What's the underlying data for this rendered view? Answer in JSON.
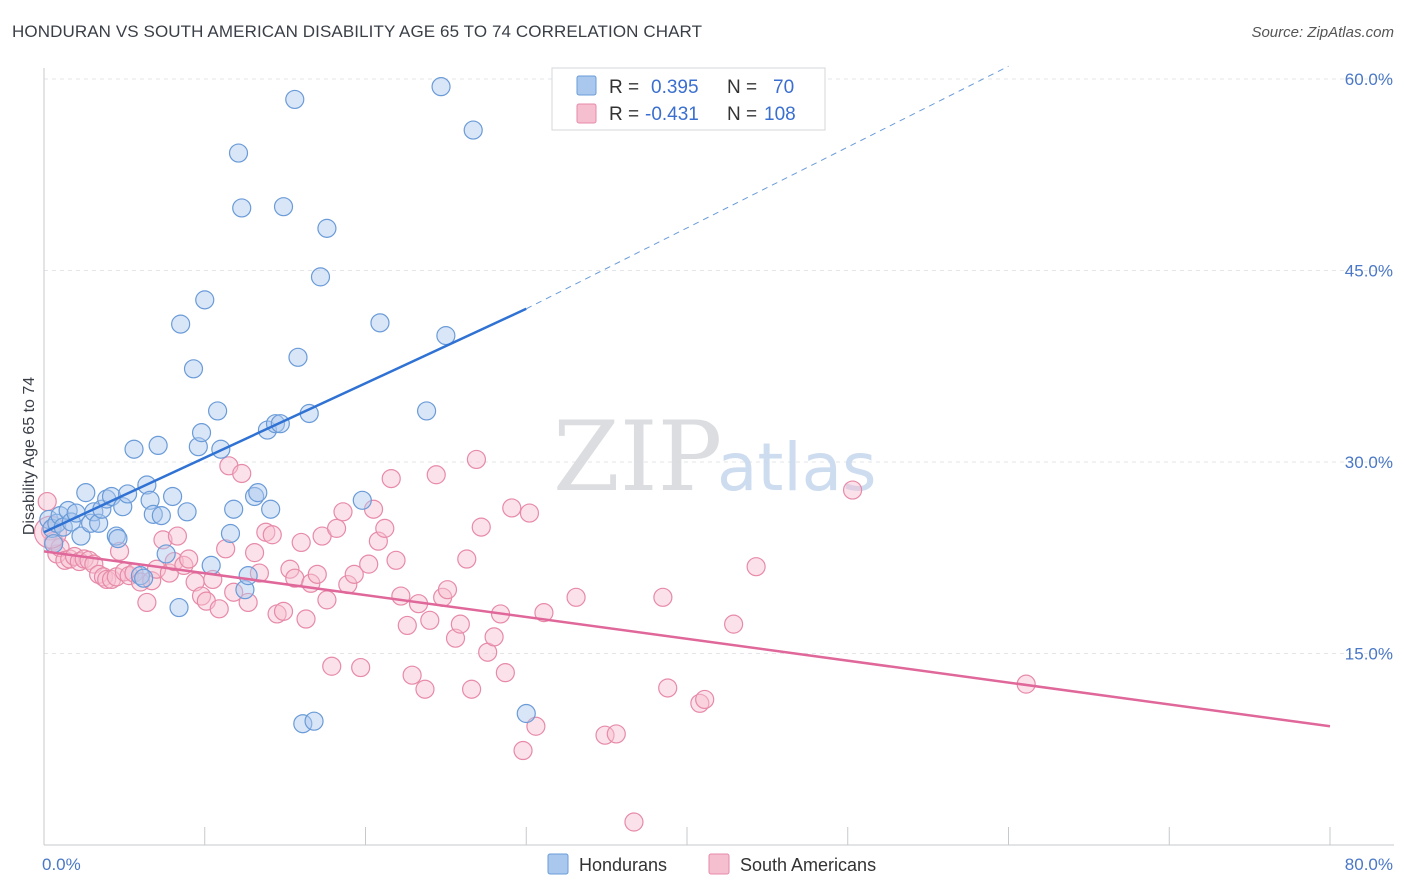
{
  "header": {
    "title": "HONDURAN VS SOUTH AMERICAN DISABILITY AGE 65 TO 74 CORRELATION CHART",
    "source": "Source: ZipAtlas.com"
  },
  "watermark": {
    "zip": "ZIP",
    "atlas": "atlas"
  },
  "legend": {
    "rows": [
      {
        "r_label": "R =",
        "r_value": "0.395",
        "n_label": "N =",
        "n_value": "70",
        "color": "#aac8ee",
        "stroke": "#6a9bd8"
      },
      {
        "r_label": "R =",
        "r_value": "-0.431",
        "n_label": "N =",
        "n_value": "108",
        "color": "#f6bfd0",
        "stroke": "#e78aa8"
      }
    ]
  },
  "bottom_legend": [
    {
      "label": "Hondurans",
      "color": "#aac8ee",
      "stroke": "#6a9bd8"
    },
    {
      "label": "South Americans",
      "color": "#f6bfd0",
      "stroke": "#e78aa8"
    }
  ],
  "chart_data": {
    "type": "scatter",
    "title": "HONDURAN VS SOUTH AMERICAN DISABILITY AGE 65 TO 74 CORRELATION CHART",
    "xlabel": "",
    "ylabel": "Disability Age 65 to 74",
    "xlim": [
      0,
      80
    ],
    "ylim": [
      0,
      60
    ],
    "x_tick_labels": [
      "0.0%",
      "80.0%"
    ],
    "y_ticks": [
      15,
      30,
      45,
      60
    ],
    "y_tick_labels": [
      "15.0%",
      "30.0%",
      "45.0%",
      "60.0%"
    ],
    "grid": true,
    "legend_position": "top-center",
    "colors": {
      "hondurans": "#5b8fd6",
      "south_americans": "#e0759b",
      "hondurans_line": "#2f72d4",
      "south_americans_line": "#e0679a"
    },
    "series": [
      {
        "name": "Hondurans",
        "trend": {
          "x": [
            0,
            30
          ],
          "y": [
            24.5,
            42.0
          ],
          "dashed_to": [
            60,
            61.0
          ]
        },
        "points": [
          [
            0.3,
            25.5
          ],
          [
            0.5,
            24.8
          ],
          [
            0.6,
            23.6
          ],
          [
            0.8,
            25.2
          ],
          [
            1.0,
            25.8
          ],
          [
            1.2,
            24.9
          ],
          [
            1.5,
            26.2
          ],
          [
            1.7,
            25.3
          ],
          [
            2.0,
            26.0
          ],
          [
            2.3,
            24.2
          ],
          [
            2.6,
            27.6
          ],
          [
            2.9,
            25.2
          ],
          [
            3.1,
            26.1
          ],
          [
            3.4,
            25.2
          ],
          [
            3.6,
            26.3
          ],
          [
            3.9,
            27.1
          ],
          [
            4.2,
            27.3
          ],
          [
            4.5,
            24.2
          ],
          [
            4.6,
            24.0
          ],
          [
            4.9,
            26.5
          ],
          [
            5.2,
            27.5
          ],
          [
            5.6,
            31.0
          ],
          [
            6.0,
            21.1
          ],
          [
            6.2,
            20.9
          ],
          [
            6.4,
            28.2
          ],
          [
            6.6,
            27.0
          ],
          [
            6.8,
            25.9
          ],
          [
            7.1,
            31.3
          ],
          [
            7.3,
            25.8
          ],
          [
            7.6,
            22.8
          ],
          [
            8.0,
            27.3
          ],
          [
            8.4,
            18.6
          ],
          [
            8.5,
            40.8
          ],
          [
            8.9,
            26.1
          ],
          [
            9.3,
            37.3
          ],
          [
            9.6,
            31.2
          ],
          [
            9.8,
            32.3
          ],
          [
            10.0,
            42.7
          ],
          [
            10.4,
            21.9
          ],
          [
            10.8,
            34.0
          ],
          [
            11.0,
            31.0
          ],
          [
            11.6,
            24.4
          ],
          [
            11.8,
            26.3
          ],
          [
            12.1,
            54.2
          ],
          [
            12.3,
            49.9
          ],
          [
            12.5,
            20.0
          ],
          [
            12.7,
            21.1
          ],
          [
            13.1,
            27.3
          ],
          [
            13.3,
            27.6
          ],
          [
            13.9,
            32.5
          ],
          [
            14.1,
            26.3
          ],
          [
            14.4,
            33.0
          ],
          [
            14.7,
            33.0
          ],
          [
            14.9,
            50.0
          ],
          [
            15.6,
            58.4
          ],
          [
            15.8,
            38.2
          ],
          [
            16.1,
            9.5
          ],
          [
            16.5,
            33.8
          ],
          [
            16.8,
            9.7
          ],
          [
            17.2,
            44.5
          ],
          [
            17.6,
            48.3
          ],
          [
            19.8,
            27.0
          ],
          [
            20.9,
            40.9
          ],
          [
            23.8,
            34.0
          ],
          [
            25.0,
            39.9
          ],
          [
            24.7,
            59.4
          ],
          [
            26.7,
            56.0
          ],
          [
            30.0,
            10.3
          ]
        ]
      },
      {
        "name": "South Americans",
        "trend": {
          "x": [
            0,
            80
          ],
          "y": [
            23.0,
            9.3
          ]
        },
        "points": [
          [
            0.2,
            26.9
          ],
          [
            0.4,
            24.6
          ],
          [
            0.6,
            23.8
          ],
          [
            0.8,
            22.8
          ],
          [
            1.0,
            23.3
          ],
          [
            1.3,
            22.3
          ],
          [
            1.6,
            22.4
          ],
          [
            1.9,
            22.6
          ],
          [
            2.2,
            22.2
          ],
          [
            2.5,
            22.4
          ],
          [
            2.8,
            22.3
          ],
          [
            3.1,
            22.0
          ],
          [
            3.4,
            21.2
          ],
          [
            3.7,
            21.0
          ],
          [
            3.9,
            20.8
          ],
          [
            4.2,
            20.8
          ],
          [
            4.5,
            21.0
          ],
          [
            4.7,
            23.0
          ],
          [
            5.0,
            21.4
          ],
          [
            5.3,
            21.1
          ],
          [
            5.6,
            21.3
          ],
          [
            6.0,
            20.6
          ],
          [
            6.4,
            19.0
          ],
          [
            6.7,
            20.7
          ],
          [
            7.0,
            21.6
          ],
          [
            7.4,
            23.9
          ],
          [
            7.8,
            21.3
          ],
          [
            8.1,
            22.2
          ],
          [
            8.3,
            24.2
          ],
          [
            8.7,
            21.9
          ],
          [
            9.0,
            22.4
          ],
          [
            9.4,
            20.6
          ],
          [
            9.8,
            19.5
          ],
          [
            10.1,
            19.1
          ],
          [
            10.5,
            20.8
          ],
          [
            10.9,
            18.5
          ],
          [
            11.3,
            23.2
          ],
          [
            11.5,
            29.7
          ],
          [
            11.8,
            19.8
          ],
          [
            12.3,
            29.1
          ],
          [
            12.7,
            19.0
          ],
          [
            13.1,
            22.9
          ],
          [
            13.4,
            21.3
          ],
          [
            13.8,
            24.5
          ],
          [
            14.2,
            24.3
          ],
          [
            14.5,
            18.1
          ],
          [
            14.9,
            18.3
          ],
          [
            15.3,
            21.6
          ],
          [
            15.6,
            20.9
          ],
          [
            16.0,
            23.7
          ],
          [
            16.3,
            17.7
          ],
          [
            16.6,
            20.5
          ],
          [
            17.0,
            21.2
          ],
          [
            17.3,
            24.2
          ],
          [
            17.6,
            19.2
          ],
          [
            17.9,
            14.0
          ],
          [
            18.2,
            24.8
          ],
          [
            18.6,
            26.1
          ],
          [
            18.9,
            20.4
          ],
          [
            19.3,
            21.2
          ],
          [
            19.7,
            13.9
          ],
          [
            20.2,
            22.0
          ],
          [
            20.5,
            26.3
          ],
          [
            20.8,
            23.8
          ],
          [
            21.2,
            24.8
          ],
          [
            21.6,
            28.7
          ],
          [
            21.9,
            22.3
          ],
          [
            22.2,
            19.5
          ],
          [
            22.6,
            17.2
          ],
          [
            22.9,
            13.3
          ],
          [
            23.3,
            18.9
          ],
          [
            23.7,
            12.2
          ],
          [
            24.0,
            17.6
          ],
          [
            24.4,
            29.0
          ],
          [
            24.8,
            19.4
          ],
          [
            25.1,
            20.0
          ],
          [
            25.6,
            16.2
          ],
          [
            25.9,
            17.3
          ],
          [
            26.3,
            22.4
          ],
          [
            26.6,
            12.2
          ],
          [
            26.9,
            30.2
          ],
          [
            27.2,
            24.9
          ],
          [
            27.6,
            15.1
          ],
          [
            28.0,
            16.3
          ],
          [
            28.4,
            18.1
          ],
          [
            28.7,
            13.5
          ],
          [
            29.1,
            26.4
          ],
          [
            29.8,
            7.4
          ],
          [
            30.2,
            26.0
          ],
          [
            30.6,
            9.3
          ],
          [
            31.1,
            18.2
          ],
          [
            33.1,
            19.4
          ],
          [
            34.9,
            8.6
          ],
          [
            35.6,
            8.7
          ],
          [
            36.7,
            1.8
          ],
          [
            38.5,
            19.4
          ],
          [
            38.8,
            12.3
          ],
          [
            40.8,
            11.1
          ],
          [
            41.1,
            11.4
          ],
          [
            42.9,
            17.3
          ],
          [
            44.3,
            21.8
          ],
          [
            50.3,
            27.8
          ],
          [
            61.1,
            12.6
          ]
        ]
      }
    ]
  }
}
